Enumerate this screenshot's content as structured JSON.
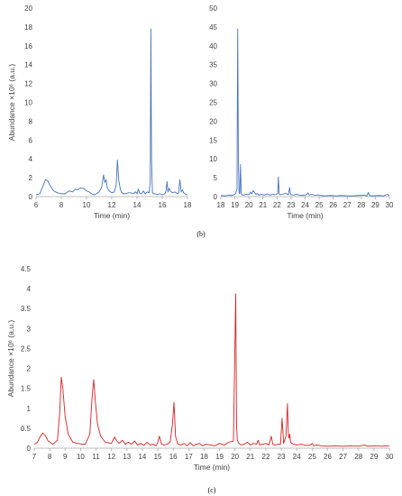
{
  "charts": [
    {
      "type": "line",
      "panel_label": "",
      "xlabel": "Time (min)",
      "ylabel": "Abundance ×10⁶ (a.u.)",
      "xlim": [
        6,
        18
      ],
      "ylim": [
        0,
        20
      ],
      "xticks": [
        "6",
        "8",
        "10",
        "12",
        "14",
        "16",
        "18"
      ],
      "yticks": [
        "0",
        "2",
        "4",
        "6",
        "8",
        "10",
        "12",
        "14",
        "16",
        "18",
        "20"
      ],
      "color": "#4472c4",
      "series": [
        {
          "x": [
            6.0,
            6.3,
            6.6,
            6.75,
            6.9,
            7.1,
            7.4,
            7.7,
            8.0,
            8.3,
            8.6,
            8.9,
            9.1,
            9.3,
            9.5,
            9.7,
            9.85,
            10.0,
            10.2,
            10.4,
            10.6,
            10.8,
            11.0,
            11.2,
            11.35,
            11.45,
            11.55,
            11.65,
            11.8,
            12.0,
            12.2,
            12.35,
            12.45,
            12.55,
            12.65,
            12.75,
            12.9,
            13.1,
            13.3,
            13.5,
            13.7,
            13.9,
            14.0,
            14.1,
            14.2,
            14.35,
            14.5,
            14.65,
            14.8,
            14.95,
            15.05,
            15.1,
            15.15,
            15.22,
            15.3,
            15.45,
            15.6,
            15.8,
            16.0,
            16.2,
            16.3,
            16.38,
            16.45,
            16.55,
            16.65,
            16.8,
            17.0,
            17.2,
            17.3,
            17.4,
            17.5,
            17.6,
            17.7,
            17.8,
            17.9,
            18.0
          ],
          "y": [
            0.2,
            0.3,
            1.3,
            1.8,
            1.7,
            1.2,
            0.6,
            0.4,
            0.3,
            0.3,
            0.6,
            0.5,
            0.8,
            0.7,
            0.9,
            0.9,
            0.8,
            0.6,
            0.5,
            0.3,
            0.2,
            0.3,
            0.5,
            1.0,
            2.3,
            1.5,
            1.8,
            0.9,
            0.6,
            0.4,
            0.5,
            1.2,
            3.9,
            1.8,
            1.0,
            0.5,
            0.3,
            0.3,
            0.4,
            0.4,
            0.3,
            0.5,
            0.3,
            0.8,
            0.4,
            0.3,
            0.6,
            0.3,
            0.5,
            0.4,
            1.5,
            17.8,
            4.0,
            0.5,
            0.3,
            0.3,
            0.2,
            0.3,
            0.2,
            0.3,
            0.6,
            1.6,
            0.5,
            0.9,
            0.6,
            0.4,
            0.5,
            0.3,
            0.4,
            1.8,
            0.5,
            0.7,
            0.4,
            0.3,
            0.2,
            0.2
          ]
        }
      ]
    },
    {
      "type": "line",
      "panel_label": "",
      "xlabel": "Time (min)",
      "ylabel": "",
      "xlim": [
        18,
        30
      ],
      "ylim": [
        0,
        50
      ],
      "xticks": [
        "18",
        "19",
        "20",
        "21",
        "22",
        "23",
        "24",
        "25",
        "26",
        "27",
        "28",
        "29",
        "30"
      ],
      "yticks": [
        "0",
        "5",
        "10",
        "15",
        "20",
        "25",
        "30",
        "35",
        "40",
        "45",
        "50"
      ],
      "color": "#4472c4",
      "series": [
        {
          "x": [
            18.0,
            18.3,
            18.6,
            18.8,
            18.95,
            19.05,
            19.15,
            19.2,
            19.25,
            19.3,
            19.35,
            19.4,
            19.45,
            19.5,
            19.6,
            19.8,
            20.0,
            20.1,
            20.2,
            20.3,
            20.5,
            20.6,
            20.7,
            20.9,
            21.1,
            21.3,
            21.5,
            21.7,
            21.9,
            22.05,
            22.1,
            22.15,
            22.2,
            22.4,
            22.6,
            22.8,
            22.9,
            22.95,
            23.0,
            23.2,
            23.4,
            23.6,
            23.9,
            24.1,
            24.2,
            24.3,
            24.5,
            24.7,
            24.9,
            25.1,
            25.4,
            25.8,
            26.2,
            26.6,
            27.0,
            27.4,
            27.8,
            28.2,
            28.4,
            28.5,
            28.6,
            28.8,
            29.2,
            29.6,
            29.85,
            30.0
          ],
          "y": [
            0.3,
            0.2,
            0.4,
            0.3,
            0.5,
            0.8,
            2.0,
            44.5,
            9.0,
            1.0,
            0.8,
            8.5,
            1.0,
            0.5,
            0.4,
            0.6,
            0.5,
            1.2,
            0.7,
            1.6,
            0.6,
            0.8,
            0.4,
            0.6,
            0.4,
            0.7,
            0.4,
            0.6,
            0.5,
            0.8,
            5.2,
            0.8,
            0.5,
            0.6,
            0.9,
            0.5,
            2.4,
            0.8,
            0.5,
            0.4,
            0.6,
            0.4,
            0.3,
            0.5,
            1.0,
            0.4,
            0.6,
            0.3,
            0.5,
            0.3,
            0.2,
            0.3,
            0.2,
            0.3,
            0.2,
            0.2,
            0.3,
            0.4,
            0.2,
            1.1,
            0.3,
            0.2,
            0.3,
            0.2,
            0.6,
            0.2
          ]
        }
      ]
    },
    {
      "type": "line",
      "panel_label": "",
      "xlabel": "Time (min)",
      "ylabel": "Abundance ×10⁶ (a.u.)",
      "xlim": [
        7,
        30
      ],
      "ylim": [
        0,
        4.5
      ],
      "xticks": [
        "7",
        "8",
        "9",
        "10",
        "11",
        "12",
        "13",
        "14",
        "15",
        "16",
        "17",
        "18",
        "19",
        "20",
        "21",
        "22",
        "23",
        "24",
        "25",
        "26",
        "27",
        "28",
        "29",
        "30"
      ],
      "yticks": [
        "0",
        "0.5",
        "1",
        "1.5",
        "2",
        "2.5",
        "3",
        "3.5",
        "4",
        "4.5"
      ],
      "color": "#e02020",
      "series": [
        {
          "x": [
            7.0,
            7.2,
            7.4,
            7.55,
            7.7,
            7.9,
            8.2,
            8.5,
            8.65,
            8.75,
            8.85,
            9.0,
            9.2,
            9.5,
            9.8,
            10.1,
            10.3,
            10.6,
            10.75,
            10.85,
            10.95,
            11.1,
            11.3,
            11.6,
            12.0,
            12.2,
            12.35,
            12.5,
            12.7,
            12.9,
            13.1,
            13.3,
            13.5,
            13.7,
            13.9,
            14.1,
            14.3,
            14.5,
            14.7,
            14.9,
            15.0,
            15.1,
            15.25,
            15.4,
            15.6,
            15.8,
            15.95,
            16.05,
            16.15,
            16.3,
            16.5,
            16.7,
            16.9,
            17.1,
            17.3,
            17.5,
            17.7,
            17.9,
            18.1,
            18.4,
            18.7,
            19.0,
            19.3,
            19.6,
            19.9,
            20.05,
            20.1,
            20.15,
            20.25,
            20.4,
            20.6,
            20.8,
            21.0,
            21.2,
            21.4,
            21.5,
            21.6,
            21.8,
            22.0,
            22.2,
            22.35,
            22.45,
            22.6,
            22.8,
            22.95,
            23.05,
            23.15,
            23.3,
            23.4,
            23.45,
            23.5,
            23.55,
            23.6,
            23.7,
            23.8,
            24.0,
            24.3,
            24.6,
            24.9,
            25.0,
            25.1,
            25.3,
            25.6,
            26.0,
            26.5,
            27.0,
            27.5,
            28.0,
            28.4,
            28.5,
            28.6,
            29.0,
            29.5,
            30.0
          ],
          "y": [
            0.1,
            0.15,
            0.3,
            0.38,
            0.33,
            0.18,
            0.1,
            0.2,
            0.9,
            1.78,
            1.5,
            0.8,
            0.35,
            0.15,
            0.12,
            0.1,
            0.1,
            0.35,
            1.3,
            1.72,
            1.2,
            0.6,
            0.3,
            0.15,
            0.12,
            0.28,
            0.18,
            0.12,
            0.2,
            0.1,
            0.15,
            0.1,
            0.18,
            0.08,
            0.12,
            0.07,
            0.15,
            0.08,
            0.1,
            0.06,
            0.15,
            0.3,
            0.1,
            0.08,
            0.1,
            0.15,
            0.6,
            1.15,
            0.3,
            0.1,
            0.08,
            0.12,
            0.06,
            0.14,
            0.06,
            0.1,
            0.12,
            0.06,
            0.1,
            0.08,
            0.06,
            0.12,
            0.08,
            0.15,
            0.18,
            3.87,
            0.6,
            0.2,
            0.12,
            0.08,
            0.1,
            0.15,
            0.08,
            0.12,
            0.1,
            0.2,
            0.08,
            0.1,
            0.12,
            0.08,
            0.3,
            0.1,
            0.08,
            0.1,
            0.1,
            0.75,
            0.12,
            0.3,
            1.12,
            0.4,
            0.25,
            0.35,
            0.15,
            0.12,
            0.1,
            0.08,
            0.1,
            0.07,
            0.08,
            0.12,
            0.06,
            0.08,
            0.06,
            0.05,
            0.06,
            0.05,
            0.06,
            0.05,
            0.08,
            0.06,
            0.05,
            0.06,
            0.05,
            0.06
          ]
        }
      ]
    }
  ],
  "captions": [
    "(b)",
    "(c)"
  ]
}
